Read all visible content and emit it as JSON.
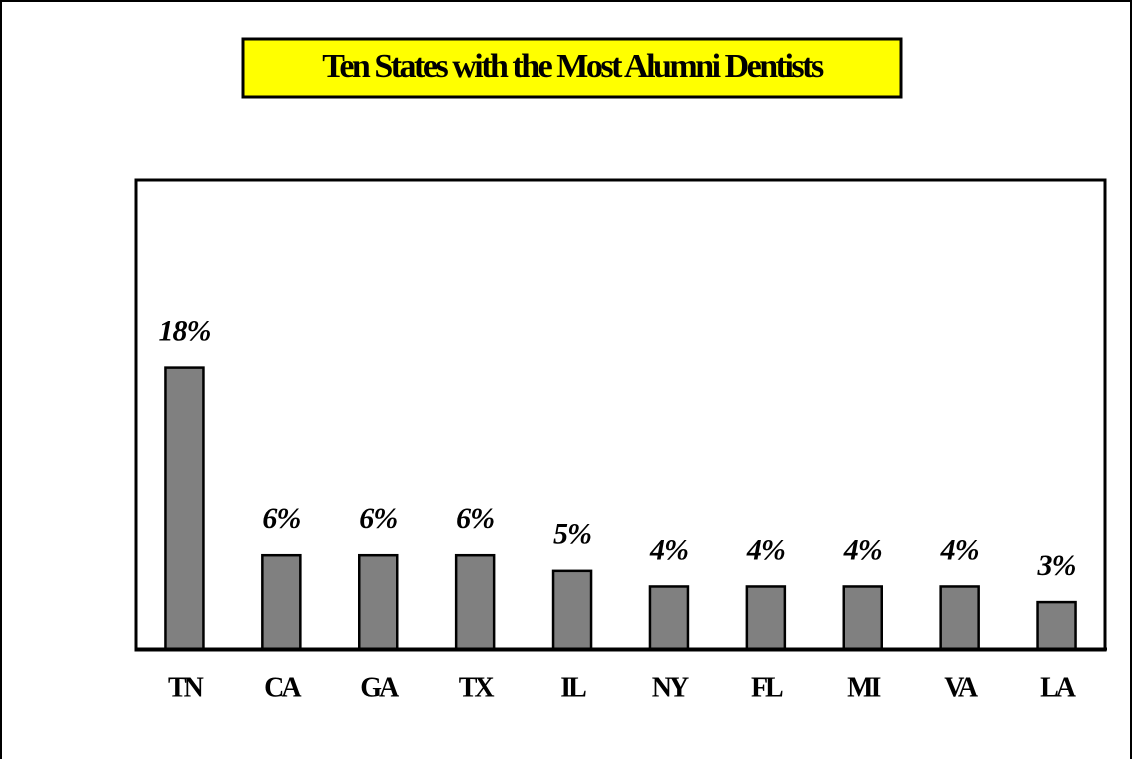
{
  "chart_data": {
    "type": "bar",
    "title": "Ten States with the Most Alumni Dentists",
    "categories": [
      "TN",
      "CA",
      "GA",
      "TX",
      "IL",
      "NY",
      "FL",
      "MI",
      "VA",
      "LA"
    ],
    "values": [
      18,
      6,
      6,
      6,
      5,
      4,
      4,
      4,
      4,
      3
    ],
    "value_labels": [
      "18%",
      "6%",
      "6%",
      "6%",
      "5%",
      "4%",
      "4%",
      "4%",
      "4%",
      "3%"
    ],
    "color": "#808080",
    "ylim": [
      0,
      30
    ],
    "grid": false
  }
}
